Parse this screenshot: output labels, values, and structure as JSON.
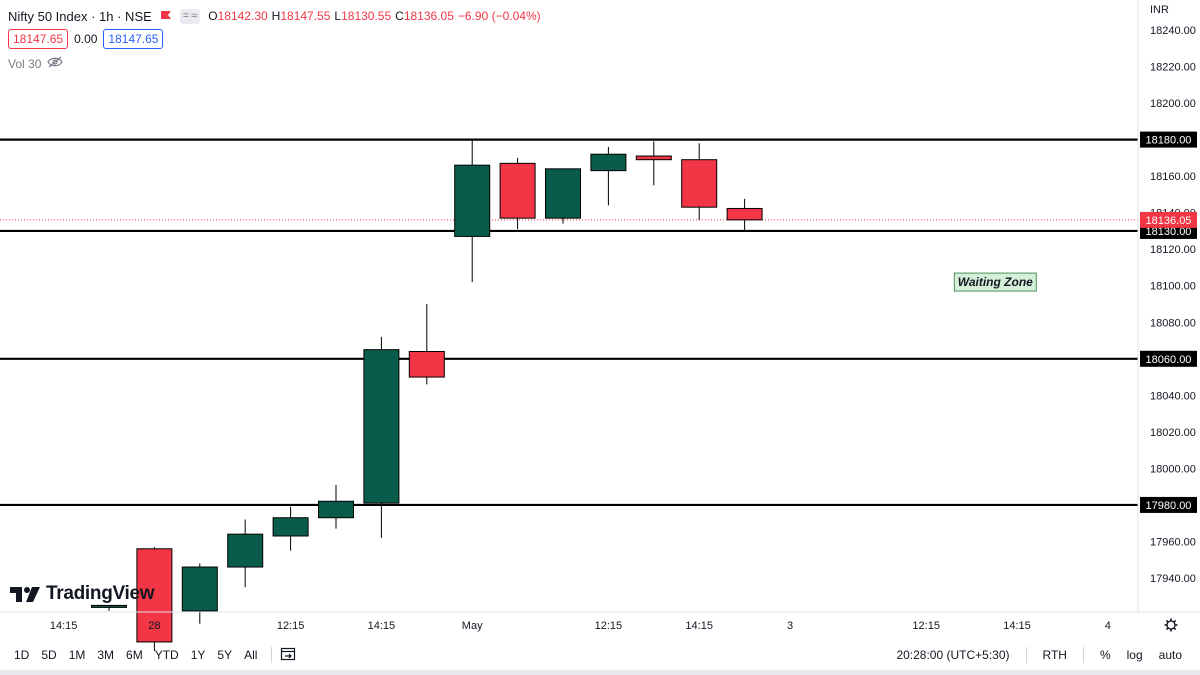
{
  "header": {
    "symbol_title": "Nifty 50 Index · 1h · NSE",
    "ohlc": [
      {
        "label": "O",
        "value": "18142.30"
      },
      {
        "label": "H",
        "value": "18147.55"
      },
      {
        "label": "L",
        "value": "18130.55"
      },
      {
        "label": "C",
        "value": "18136.05"
      }
    ],
    "change": "−6.90 (−0.04%)",
    "bid": "18147.65",
    "spread": "0.00",
    "ask": "18147.65",
    "volume_label": "Vol 30",
    "currency": "INR"
  },
  "colors": {
    "up": "#0a5c4a",
    "down": "#f23645",
    "ask": "#2962ff",
    "level_line": "#000000",
    "zone_fill": "#d6efd9"
  },
  "logo": {
    "text": "TradingView"
  },
  "bottom_bar": {
    "ranges": [
      "1D",
      "5D",
      "1M",
      "3M",
      "6M",
      "YTD",
      "1Y",
      "5Y",
      "All"
    ],
    "time": "20:28:00 (UTC+5:30)",
    "session": "RTH",
    "percent": "%",
    "log": "log",
    "auto": "auto"
  },
  "chart_data": {
    "type": "candlestick",
    "ylim": [
      17920,
      18250
    ],
    "y_ticks": [
      17940,
      17960,
      17980,
      18000,
      18020,
      18040,
      18060,
      18080,
      18100,
      18120,
      18140,
      18160,
      18180,
      18200,
      18220,
      18240
    ],
    "y_tick_labels": [
      "17940.00",
      "17960.00",
      "17980.00",
      "18000.00",
      "18020.00",
      "18040.00",
      "18060.00",
      "18080.00",
      "18100.00",
      "18120.00",
      "18140.00",
      "18160.00",
      "18180.00",
      "18200.00",
      "18220.00",
      "18240.00"
    ],
    "x_labels": [
      {
        "label": "14:15",
        "slot": -1
      },
      {
        "label": "28",
        "slot": 1
      },
      {
        "label": "12:15",
        "slot": 4
      },
      {
        "label": "14:15",
        "slot": 6
      },
      {
        "label": "May",
        "slot": 8
      },
      {
        "label": "12:15",
        "slot": 11
      },
      {
        "label": "14:15",
        "slot": 13
      },
      {
        "label": "3",
        "slot": 15
      },
      {
        "label": "12:15",
        "slot": 18
      },
      {
        "label": "14:15",
        "slot": 20
      },
      {
        "label": "4",
        "slot": 22
      }
    ],
    "candles": [
      {
        "o": 17924,
        "h": 17925,
        "l": 17922,
        "c": 17925
      },
      {
        "o": 17956,
        "h": 17957,
        "l": 17900,
        "c": 17905
      },
      {
        "o": 17922,
        "h": 17948,
        "l": 17915,
        "c": 17946
      },
      {
        "o": 17946,
        "h": 17972,
        "l": 17935,
        "c": 17964
      },
      {
        "o": 17963,
        "h": 17979,
        "l": 17955,
        "c": 17973
      },
      {
        "o": 17973,
        "h": 17991,
        "l": 17967,
        "c": 17982
      },
      {
        "o": 17981,
        "h": 18072,
        "l": 17962,
        "c": 18065
      },
      {
        "o": 18064,
        "h": 18090,
        "l": 18046,
        "c": 18050
      },
      {
        "o": 18127,
        "h": 18180,
        "l": 18102,
        "c": 18166
      },
      {
        "o": 18167,
        "h": 18170,
        "l": 18131,
        "c": 18137
      },
      {
        "o": 18137,
        "h": 18164,
        "l": 18134,
        "c": 18164
      },
      {
        "o": 18163,
        "h": 18176,
        "l": 18144,
        "c": 18172
      },
      {
        "o": 18171,
        "h": 18179,
        "l": 18155,
        "c": 18169
      },
      {
        "o": 18169,
        "h": 18178,
        "l": 18136,
        "c": 18143
      },
      {
        "o": 18142.3,
        "h": 18147.55,
        "l": 18130.55,
        "c": 18136.05
      }
    ],
    "levels": [
      {
        "price": 18180,
        "label": "18180.00"
      },
      {
        "price": 18130,
        "label": "18130.00"
      },
      {
        "price": 18060,
        "label": "18060.00"
      },
      {
        "price": 17980,
        "label": "17980.00"
      }
    ],
    "last_price": {
      "price": 18136.05,
      "label": "18136.05"
    },
    "annotation": {
      "text": "Waiting Zone",
      "price": 18102,
      "slot": 19.5
    }
  }
}
